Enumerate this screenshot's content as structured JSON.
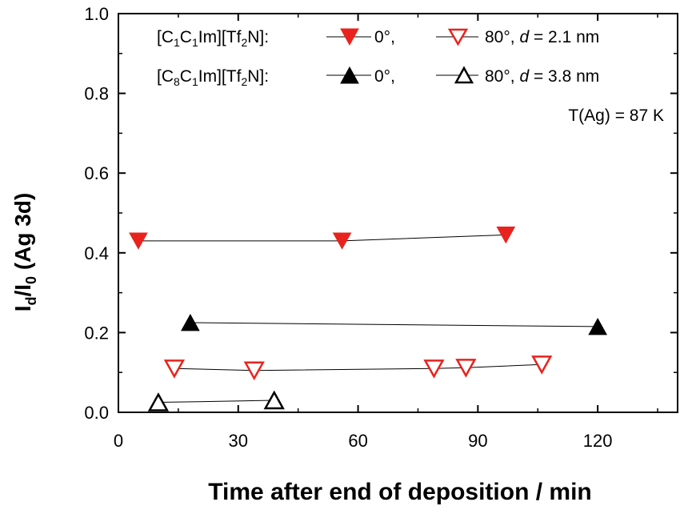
{
  "chart_data": {
    "type": "scatter",
    "title": "",
    "xlabel": "Time after end of deposition / min",
    "ylabel": {
      "I": "I",
      "d": "d",
      "slash": "/",
      "I2": "I",
      "zero": "0",
      "rest": " (Ag 3d)"
    },
    "xlim": [
      0,
      140
    ],
    "ylim": [
      0.0,
      1.0
    ],
    "x_ticks": [
      0,
      30,
      60,
      90,
      120
    ],
    "x_tick_labels": [
      "0",
      "30",
      "60",
      "90",
      "120"
    ],
    "y_ticks": [
      0.0,
      0.2,
      0.4,
      0.6,
      0.8,
      1.0
    ],
    "y_tick_labels": [
      "0.0",
      "0.2",
      "0.4",
      "0.6",
      "0.8",
      "1.0"
    ],
    "series": [
      {
        "name": "[C1C1Im][Tf2N] 0°",
        "color": "#e8231e",
        "marker": "triangle-down",
        "filled": true,
        "x": [
          5,
          56,
          97
        ],
        "y": [
          0.43,
          0.43,
          0.445
        ]
      },
      {
        "name": "[C1C1Im][Tf2N] 80°",
        "color": "#e8231e",
        "marker": "triangle-down",
        "filled": false,
        "x": [
          14,
          34,
          79,
          87,
          106
        ],
        "y": [
          0.11,
          0.105,
          0.11,
          0.112,
          0.12
        ]
      },
      {
        "name": "[C8C1Im][Tf2N] 0°",
        "color": "#000000",
        "marker": "triangle-up",
        "filled": true,
        "x": [
          18,
          120
        ],
        "y": [
          0.225,
          0.215
        ]
      },
      {
        "name": "[C8C1Im][Tf2N] 80°",
        "color": "#000000",
        "marker": "triangle-up",
        "filled": false,
        "x": [
          10,
          39
        ],
        "y": [
          0.025,
          0.03
        ]
      }
    ],
    "legend": {
      "row1": {
        "prefix": "[C",
        "s1": "1",
        "mid": "C",
        "s2": "1",
        "im": "Im][Tf",
        "s3": "2",
        "end": "N]:",
        "label_a": "0°,",
        "label_b": "80°, ",
        "d": "d",
        "d_val": " = 2.1 nm"
      },
      "row2": {
        "prefix": "[C",
        "s1": "8",
        "mid": "C",
        "s2": "1",
        "im": "Im][Tf",
        "s3": "2",
        "end": "N]:",
        "label_a": "0°,",
        "label_b": "80°, ",
        "d": "d",
        "d_val": " = 3.8 nm"
      },
      "annotation": "T(Ag) = 87 K",
      "placement": "top-right"
    }
  }
}
